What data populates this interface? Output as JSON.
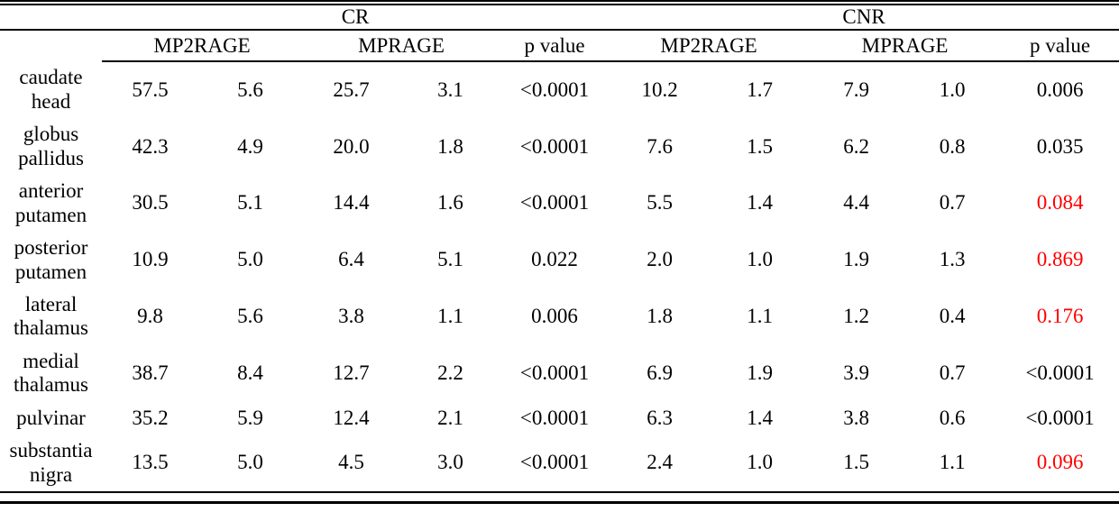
{
  "colors": {
    "text": "#000000",
    "highlight_red": "#ff0000",
    "background": "#ffffff",
    "rule": "#000000"
  },
  "table": {
    "groups": {
      "cr": "CR",
      "cnr": "CNR"
    },
    "sub_headers": {
      "mp2rage": "MP2RAGE",
      "mprage": "MPRAGE",
      "p_value": "p value"
    },
    "rows": [
      {
        "region": [
          "caudate",
          "head"
        ],
        "values": [
          "57.5",
          "5.6",
          "25.7",
          "3.1",
          "<0.0001",
          "10.2",
          "1.7",
          "7.9",
          "1.0",
          "0.006"
        ],
        "cnr_p_red": false
      },
      {
        "region": [
          "globus",
          "pallidus"
        ],
        "values": [
          "42.3",
          "4.9",
          "20.0",
          "1.8",
          "<0.0001",
          "7.6",
          "1.5",
          "6.2",
          "0.8",
          "0.035"
        ],
        "cnr_p_red": false
      },
      {
        "region": [
          "anterior",
          "putamen"
        ],
        "values": [
          "30.5",
          "5.1",
          "14.4",
          "1.6",
          "<0.0001",
          "5.5",
          "1.4",
          "4.4",
          "0.7",
          "0.084"
        ],
        "cnr_p_red": true
      },
      {
        "region": [
          "posterior",
          "putamen"
        ],
        "values": [
          "10.9",
          "5.0",
          "6.4",
          "5.1",
          "0.022",
          "2.0",
          "1.0",
          "1.9",
          "1.3",
          "0.869"
        ],
        "cnr_p_red": true
      },
      {
        "region": [
          "lateral",
          "thalamus"
        ],
        "values": [
          "9.8",
          "5.6",
          "3.8",
          "1.1",
          "0.006",
          "1.8",
          "1.1",
          "1.2",
          "0.4",
          "0.176"
        ],
        "cnr_p_red": true
      },
      {
        "region": [
          "medial",
          "thalamus"
        ],
        "values": [
          "38.7",
          "8.4",
          "12.7",
          "2.2",
          "<0.0001",
          "6.9",
          "1.9",
          "3.9",
          "0.7",
          "<0.0001"
        ],
        "cnr_p_red": false
      },
      {
        "region": [
          "pulvinar"
        ],
        "values": [
          "35.2",
          "5.9",
          "12.4",
          "2.1",
          "<0.0001",
          "6.3",
          "1.4",
          "3.8",
          "0.6",
          "<0.0001"
        ],
        "cnr_p_red": false
      },
      {
        "region": [
          "substantia",
          "nigra"
        ],
        "values": [
          "13.5",
          "5.0",
          "4.5",
          "3.0",
          "<0.0001",
          "2.4",
          "1.0",
          "1.5",
          "1.1",
          "0.096"
        ],
        "cnr_p_red": true
      }
    ]
  }
}
